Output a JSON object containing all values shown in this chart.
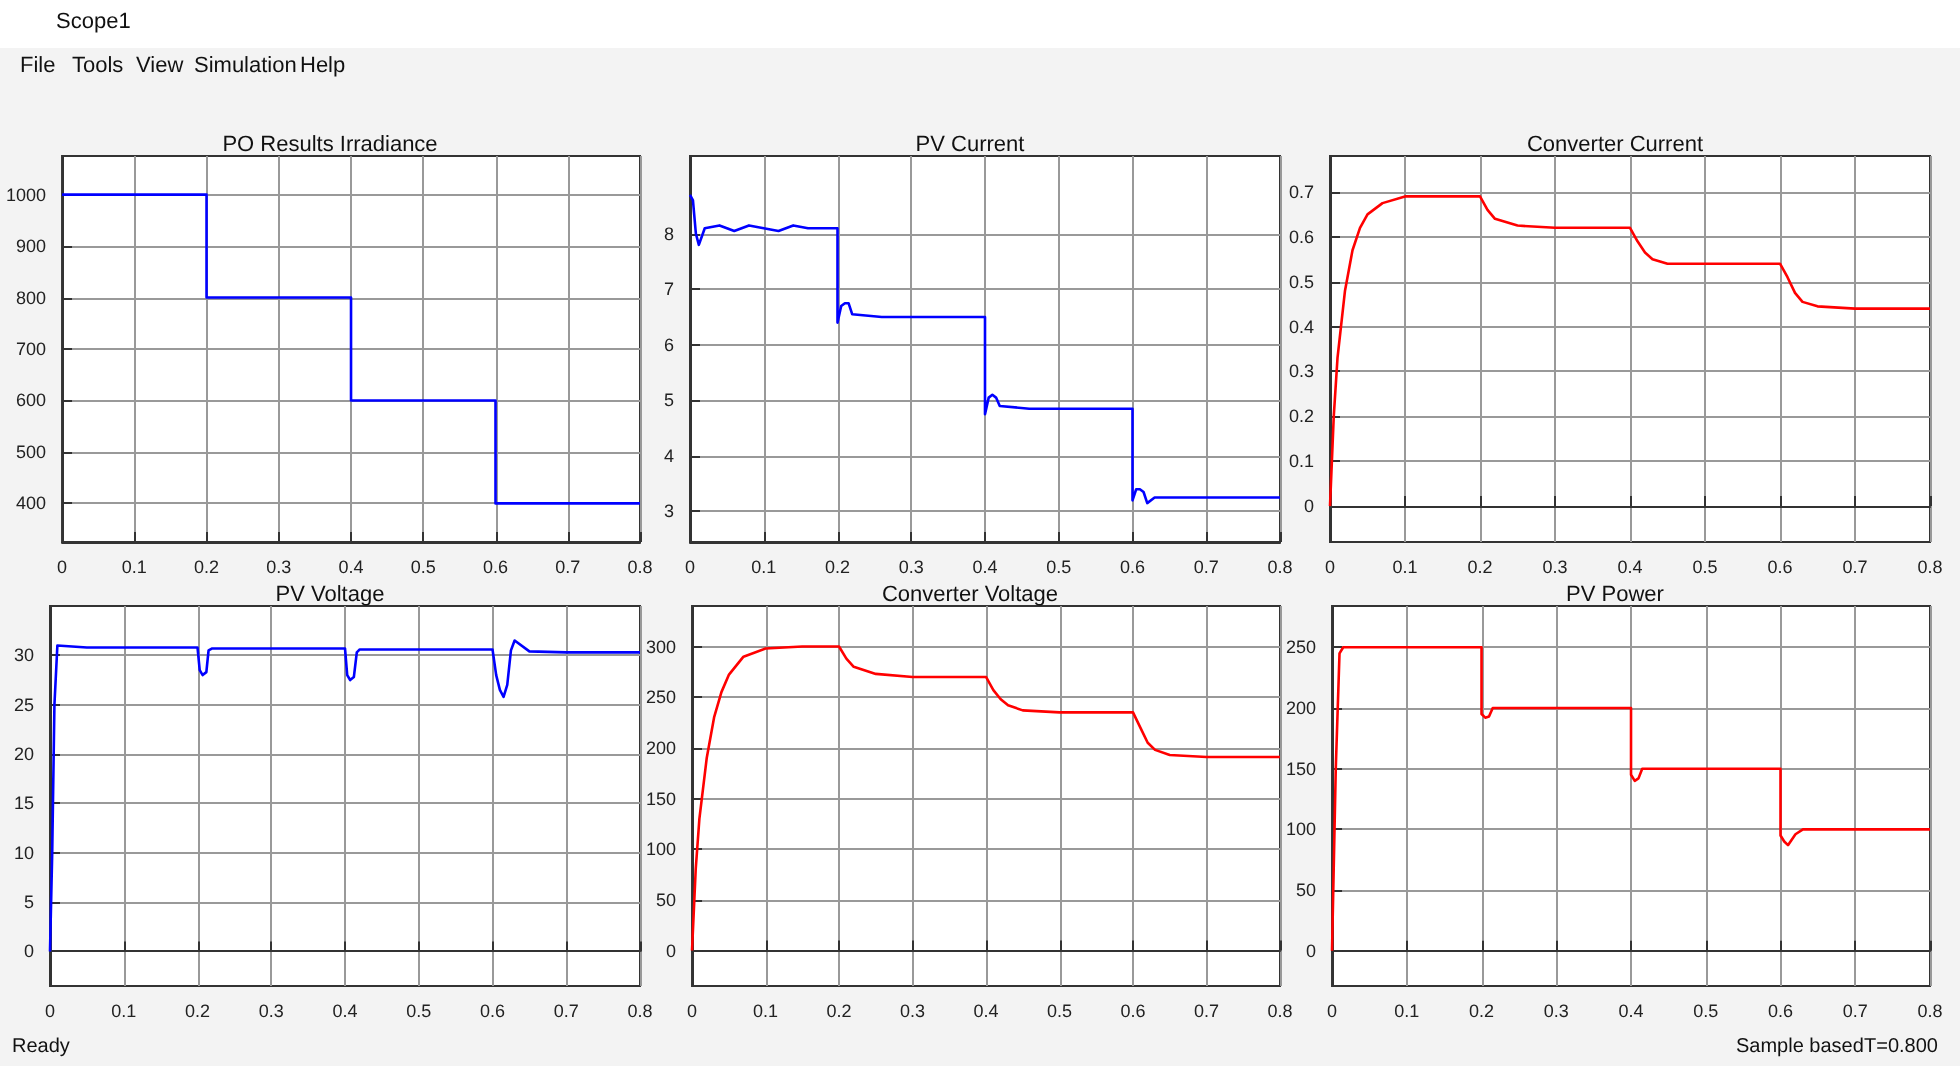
{
  "chart_data": [
    {
      "type": "line",
      "title": "PO Results Irradiance",
      "x": [
        0,
        0.2,
        0.2,
        0.4,
        0.4,
        0.6,
        0.6,
        0.8
      ],
      "values": [
        1000,
        1000,
        800,
        800,
        600,
        600,
        400,
        400
      ],
      "color": "#0000ff",
      "xlim": [
        0,
        0.8
      ],
      "xticks": [
        0,
        0.1,
        0.2,
        0.3,
        0.4,
        0.5,
        0.6,
        0.7,
        0.8
      ],
      "ylim": [
        325,
        1075
      ],
      "yticks": [
        400,
        500,
        600,
        700,
        800,
        900,
        1000
      ],
      "grid": true
    },
    {
      "type": "line",
      "title": "PV Current",
      "x": [
        0,
        0.004,
        0.008,
        0.012,
        0.02,
        0.04,
        0.06,
        0.08,
        0.1,
        0.12,
        0.14,
        0.16,
        0.18,
        0.2,
        0.2,
        0.205,
        0.21,
        0.215,
        0.22,
        0.26,
        0.3,
        0.34,
        0.38,
        0.4,
        0.4,
        0.405,
        0.41,
        0.415,
        0.42,
        0.46,
        0.5,
        0.54,
        0.58,
        0.6,
        0.6,
        0.605,
        0.61,
        0.615,
        0.62,
        0.63,
        0.66,
        0.7,
        0.75,
        0.8
      ],
      "values": [
        8.7,
        8.6,
        8.0,
        7.8,
        8.1,
        8.15,
        8.05,
        8.15,
        8.1,
        8.05,
        8.15,
        8.1,
        8.1,
        8.1,
        6.4,
        6.7,
        6.75,
        6.75,
        6.55,
        6.5,
        6.5,
        6.5,
        6.5,
        6.5,
        4.75,
        5.05,
        5.1,
        5.05,
        4.9,
        4.85,
        4.85,
        4.85,
        4.85,
        4.85,
        3.2,
        3.4,
        3.4,
        3.35,
        3.15,
        3.25,
        3.25,
        3.25,
        3.25,
        3.25
      ],
      "color": "#0000ff",
      "xlim": [
        0,
        0.8
      ],
      "xticks": [
        0,
        0.1,
        0.2,
        0.3,
        0.4,
        0.5,
        0.6,
        0.7,
        0.8
      ],
      "ylim": [
        2.45,
        9.4
      ],
      "yticks": [
        3,
        4,
        5,
        6,
        7,
        8
      ],
      "grid": true
    },
    {
      "type": "line",
      "title": "Converter Current",
      "x": [
        0,
        0.005,
        0.01,
        0.02,
        0.03,
        0.04,
        0.05,
        0.07,
        0.1,
        0.15,
        0.2,
        0.21,
        0.22,
        0.25,
        0.3,
        0.4,
        0.41,
        0.42,
        0.43,
        0.45,
        0.5,
        0.6,
        0.61,
        0.62,
        0.63,
        0.65,
        0.7,
        0.8
      ],
      "values": [
        0,
        0.2,
        0.33,
        0.48,
        0.57,
        0.62,
        0.65,
        0.675,
        0.69,
        0.69,
        0.69,
        0.66,
        0.64,
        0.625,
        0.62,
        0.62,
        0.59,
        0.565,
        0.55,
        0.54,
        0.54,
        0.54,
        0.51,
        0.475,
        0.455,
        0.445,
        0.44,
        0.44
      ],
      "color": "#ff0000",
      "xlim": [
        0,
        0.8
      ],
      "xticks": [
        0,
        0.1,
        0.2,
        0.3,
        0.4,
        0.5,
        0.6,
        0.7,
        0.8
      ],
      "ylim": [
        -0.08,
        0.78
      ],
      "yticks": [
        0,
        0.1,
        0.2,
        0.3,
        0.4,
        0.5,
        0.6,
        0.7
      ],
      "grid": true
    },
    {
      "type": "line",
      "title": "PV Voltage",
      "x": [
        0,
        0.003,
        0.006,
        0.01,
        0.05,
        0.1,
        0.15,
        0.2,
        0.203,
        0.207,
        0.212,
        0.215,
        0.22,
        0.3,
        0.4,
        0.403,
        0.407,
        0.412,
        0.416,
        0.42,
        0.5,
        0.6,
        0.605,
        0.61,
        0.615,
        0.62,
        0.625,
        0.63,
        0.65,
        0.7,
        0.8
      ],
      "values": [
        0,
        10,
        25,
        31,
        30.8,
        30.8,
        30.8,
        30.8,
        28.5,
        28,
        28.3,
        30.5,
        30.7,
        30.7,
        30.7,
        28,
        27.5,
        27.8,
        30.3,
        30.6,
        30.6,
        30.6,
        28,
        26.5,
        25.8,
        27,
        30.5,
        31.5,
        30.4,
        30.3,
        30.3
      ],
      "color": "#0000ff",
      "xlim": [
        0,
        0.8
      ],
      "xticks": [
        0,
        0.1,
        0.2,
        0.3,
        0.4,
        0.5,
        0.6,
        0.7,
        0.8
      ],
      "ylim": [
        -3.5,
        35
      ],
      "yticks": [
        0,
        5,
        10,
        15,
        20,
        25,
        30
      ],
      "grid": true
    },
    {
      "type": "line",
      "title": "Converter Voltage",
      "x": [
        0,
        0.005,
        0.01,
        0.02,
        0.03,
        0.04,
        0.05,
        0.07,
        0.1,
        0.15,
        0.2,
        0.21,
        0.22,
        0.25,
        0.3,
        0.4,
        0.41,
        0.42,
        0.43,
        0.45,
        0.5,
        0.6,
        0.61,
        0.62,
        0.63,
        0.65,
        0.7,
        0.8
      ],
      "values": [
        0,
        80,
        130,
        190,
        230,
        255,
        272,
        290,
        298,
        300,
        300,
        288,
        280,
        273,
        270,
        270,
        257,
        248,
        242,
        237,
        235,
        235,
        220,
        205,
        198,
        193,
        191,
        191
      ],
      "color": "#ff0000",
      "xlim": [
        0,
        0.8
      ],
      "xticks": [
        0,
        0.1,
        0.2,
        0.3,
        0.4,
        0.5,
        0.6,
        0.7,
        0.8
      ],
      "ylim": [
        -35,
        340
      ],
      "yticks": [
        0,
        50,
        100,
        150,
        200,
        250,
        300
      ],
      "grid": true
    },
    {
      "type": "line",
      "title": "PV Power",
      "x": [
        0,
        0.005,
        0.01,
        0.015,
        0.1,
        0.2,
        0.2,
        0.205,
        0.21,
        0.215,
        0.3,
        0.4,
        0.4,
        0.405,
        0.41,
        0.415,
        0.5,
        0.6,
        0.6,
        0.605,
        0.61,
        0.62,
        0.63,
        0.7,
        0.8
      ],
      "values": [
        0,
        150,
        245,
        250,
        250,
        250,
        195,
        192,
        193,
        200,
        200,
        200,
        145,
        140,
        142,
        150,
        150,
        150,
        95,
        90,
        87,
        96,
        100,
        100,
        100
      ],
      "color": "#ff0000",
      "xlim": [
        0,
        0.8
      ],
      "xticks": [
        0,
        0.1,
        0.2,
        0.3,
        0.4,
        0.5,
        0.6,
        0.7,
        0.8
      ],
      "ylim": [
        -29,
        284
      ],
      "yticks": [
        0,
        50,
        100,
        150,
        200,
        250
      ],
      "grid": true
    },
    {
      "type": "other",
      "title": "Scope1",
      "annotations": [
        "File",
        "Tools",
        "View",
        "Simulation",
        "Help",
        "Ready",
        "Sample based",
        "T=0.800"
      ]
    }
  ]
}
